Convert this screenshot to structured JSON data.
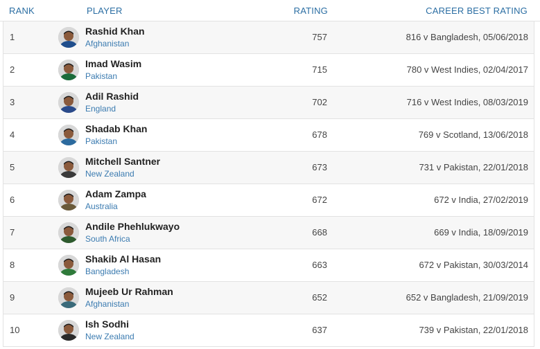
{
  "header": {
    "rank": "RANK",
    "player": "PLAYER",
    "rating": "RATING",
    "career_best": "CAREER BEST RATING"
  },
  "rows": [
    {
      "rank": "1",
      "name": "Rashid Khan",
      "country": "Afghanistan",
      "rating": "757",
      "best": "816 v Bangladesh, 05/06/2018",
      "avatar_color": "#1f4e8c"
    },
    {
      "rank": "2",
      "name": "Imad Wasim",
      "country": "Pakistan",
      "rating": "715",
      "best": "780 v West Indies, 02/04/2017",
      "avatar_color": "#1b6b3a"
    },
    {
      "rank": "3",
      "name": "Adil Rashid",
      "country": "England",
      "rating": "702",
      "best": "716 v West Indies, 08/03/2019",
      "avatar_color": "#2a4a8a"
    },
    {
      "rank": "4",
      "name": "Shadab Khan",
      "country": "Pakistan",
      "rating": "678",
      "best": "769 v Scotland, 13/06/2018",
      "avatar_color": "#2c6a9e"
    },
    {
      "rank": "5",
      "name": "Mitchell Santner",
      "country": "New Zealand",
      "rating": "673",
      "best": "731 v Pakistan, 22/01/2018",
      "avatar_color": "#3a3a3a"
    },
    {
      "rank": "6",
      "name": "Adam Zampa",
      "country": "Australia",
      "rating": "672",
      "best": "672 v India, 27/02/2019",
      "avatar_color": "#6a5a3a"
    },
    {
      "rank": "7",
      "name": "Andile Phehlukwayo",
      "country": "South Africa",
      "rating": "668",
      "best": "669 v India, 18/09/2019",
      "avatar_color": "#2d5a2d"
    },
    {
      "rank": "8",
      "name": "Shakib Al Hasan",
      "country": "Bangladesh",
      "rating": "663",
      "best": "672 v Pakistan, 30/03/2014",
      "avatar_color": "#2f7a3a"
    },
    {
      "rank": "9",
      "name": "Mujeeb Ur Rahman",
      "country": "Afghanistan",
      "rating": "652",
      "best": "652 v Bangladesh, 21/09/2019",
      "avatar_color": "#3a6a7a"
    },
    {
      "rank": "10",
      "name": "Ish Sodhi",
      "country": "New Zealand",
      "rating": "637",
      "best": "739 v Pakistan, 22/01/2018",
      "avatar_color": "#2a2a2a"
    }
  ]
}
